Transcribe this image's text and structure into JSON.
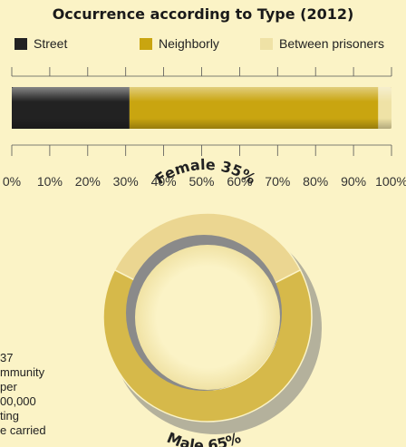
{
  "chart_data": [
    {
      "type": "bar",
      "orientation": "horizontal",
      "stacked": true,
      "title": "Occurrence according to Type (2012)",
      "series": [
        {
          "name": "Street",
          "values": [
            31
          ],
          "color": "#222222"
        },
        {
          "name": "Neighborly",
          "values": [
            65.5
          ],
          "color": "#c9a510"
        },
        {
          "name": "Between prisoners",
          "values": [
            3.5
          ],
          "color": "#efe2a6"
        }
      ],
      "xlim": [
        0,
        100
      ],
      "ticks": [
        "0%",
        "10%",
        "20%",
        "30%",
        "40%",
        "50%",
        "60%",
        "70%",
        "80%",
        "90%",
        "100%"
      ],
      "legend_position": "top"
    },
    {
      "type": "pie",
      "style": "donut",
      "slices": [
        {
          "label": "Female",
          "value": 35,
          "display": "35%",
          "color": "#ebd691"
        },
        {
          "label": "Male",
          "value": 65,
          "display": "65%",
          "color": "#d6b94a"
        }
      ]
    }
  ],
  "side_text": [
    "37",
    "mmunity",
    "per",
    "00,000",
    "ting",
    "e carried"
  ]
}
